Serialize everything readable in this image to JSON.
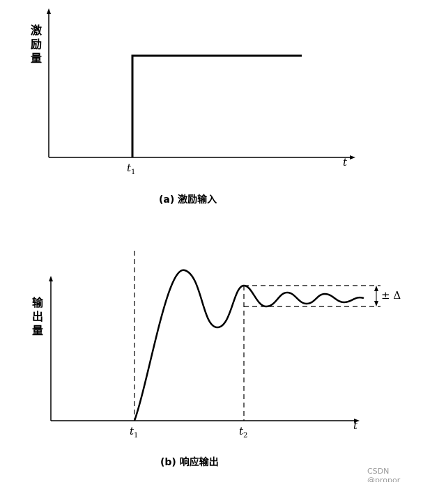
{
  "panel_a": {
    "y_label": "激励量",
    "t1": {
      "main": "t",
      "sub": "1"
    },
    "x_label": "t",
    "caption": "(a) 激励输入"
  },
  "panel_b": {
    "y_label": "输出量",
    "t1": {
      "main": "t",
      "sub": "1"
    },
    "t2": {
      "main": "t",
      "sub": "2"
    },
    "x_label": "t",
    "tolerance": "± Δ",
    "caption": "(b) 响应输出"
  },
  "watermark": "CSDN @propor"
}
